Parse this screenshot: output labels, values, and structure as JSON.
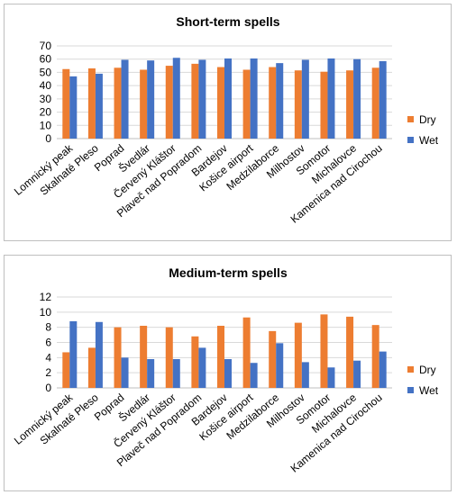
{
  "colors": {
    "dry": "#ed7d31",
    "wet": "#4472c4",
    "grid": "#d9d9d9",
    "axis": "#bfbfbf"
  },
  "chart_data": [
    {
      "type": "bar",
      "title": "Short-term spells",
      "ylim": [
        0,
        70
      ],
      "yticks": [
        "0",
        "10",
        "20",
        "30",
        "40",
        "50",
        "60",
        "70"
      ],
      "grid": true,
      "legend": "right",
      "categories": [
        "Lomnický peak",
        "Skalnaté Pleso",
        "Poprad",
        "Švedlár",
        "Červený Kláštor",
        "Plaveč nad Popradom",
        "Bardejov",
        "Košice airport",
        "Medzilaborce",
        "Milhostov",
        "Somotor",
        "Michalovce",
        "Kamenica nad Cirochou"
      ],
      "series": [
        {
          "name": "Dry",
          "color": "#ed7d31",
          "values": [
            52.5,
            53,
            53.5,
            52,
            55,
            56.5,
            54,
            52,
            54,
            51.5,
            50.5,
            51.5,
            53.5
          ]
        },
        {
          "name": "Wet",
          "color": "#4472c4",
          "values": [
            47,
            49,
            59.5,
            59,
            61,
            59.5,
            60.5,
            60.5,
            57,
            59.5,
            60.5,
            60,
            58.5
          ]
        }
      ]
    },
    {
      "type": "bar",
      "title": "Medium-term spells",
      "ylim": [
        0,
        12
      ],
      "yticks": [
        "0",
        "2",
        "4",
        "6",
        "8",
        "10",
        "12"
      ],
      "grid": true,
      "legend": "right",
      "categories": [
        "Lomnický peak",
        "Skalnaté Pleso",
        "Poprad",
        "Švedlár",
        "Červený Kláštor",
        "Plaveč nad Popradom",
        "Bardejov",
        "Košice airport",
        "Medzilaborce",
        "Milhostov",
        "Somotor",
        "Michalovce",
        "Kamenica nad Cirochou"
      ],
      "series": [
        {
          "name": "Dry",
          "color": "#ed7d31",
          "values": [
            4.7,
            5.3,
            8.0,
            8.2,
            8.0,
            6.8,
            8.2,
            9.3,
            7.5,
            8.6,
            9.7,
            9.4,
            8.3
          ]
        },
        {
          "name": "Wet",
          "color": "#4472c4",
          "values": [
            8.8,
            8.7,
            4.0,
            3.8,
            3.8,
            5.3,
            3.8,
            3.3,
            5.9,
            3.4,
            2.7,
            3.6,
            4.8
          ]
        }
      ]
    }
  ]
}
